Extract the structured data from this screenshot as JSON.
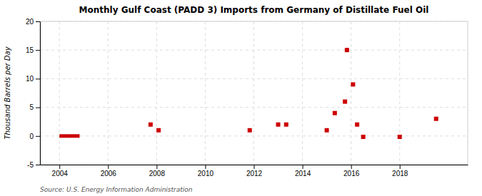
{
  "chart_data": {
    "type": "scatter",
    "title": "Monthly Gulf Coast (PADD 3) Imports from Germany of Distillate Fuel Oil",
    "y_label": "Thousand Barrels per Day",
    "annotations": [
      "Source: U.S. Energy Information Administration"
    ],
    "xlim": [
      2003.2,
      2020.8
    ],
    "xticks": [
      2004,
      2006,
      2008,
      2010,
      2012,
      2014,
      2016,
      2018
    ],
    "ylim": [
      -5,
      20
    ],
    "yticks": [
      -5,
      0,
      5,
      10,
      15,
      20
    ],
    "grid": true,
    "series": [
      {
        "type": "line",
        "color": "#cc0000",
        "x": [
          2004.0,
          2004.83
        ],
        "values": [
          0.0,
          0.0
        ]
      },
      {
        "type": "scatter",
        "marker": "square",
        "color": "#cc0000",
        "x": [
          2007.75,
          2008.08,
          2011.83,
          2013.0,
          2013.33,
          2015.0,
          2015.33,
          2015.75,
          2015.83,
          2016.08,
          2016.25,
          2016.5,
          2018.0,
          2019.5
        ],
        "values": [
          2.0,
          1.0,
          1.0,
          2.0,
          2.0,
          1.0,
          4.0,
          6.0,
          15.0,
          9.0,
          2.0,
          -0.15,
          -0.15,
          3.0
        ]
      }
    ]
  }
}
